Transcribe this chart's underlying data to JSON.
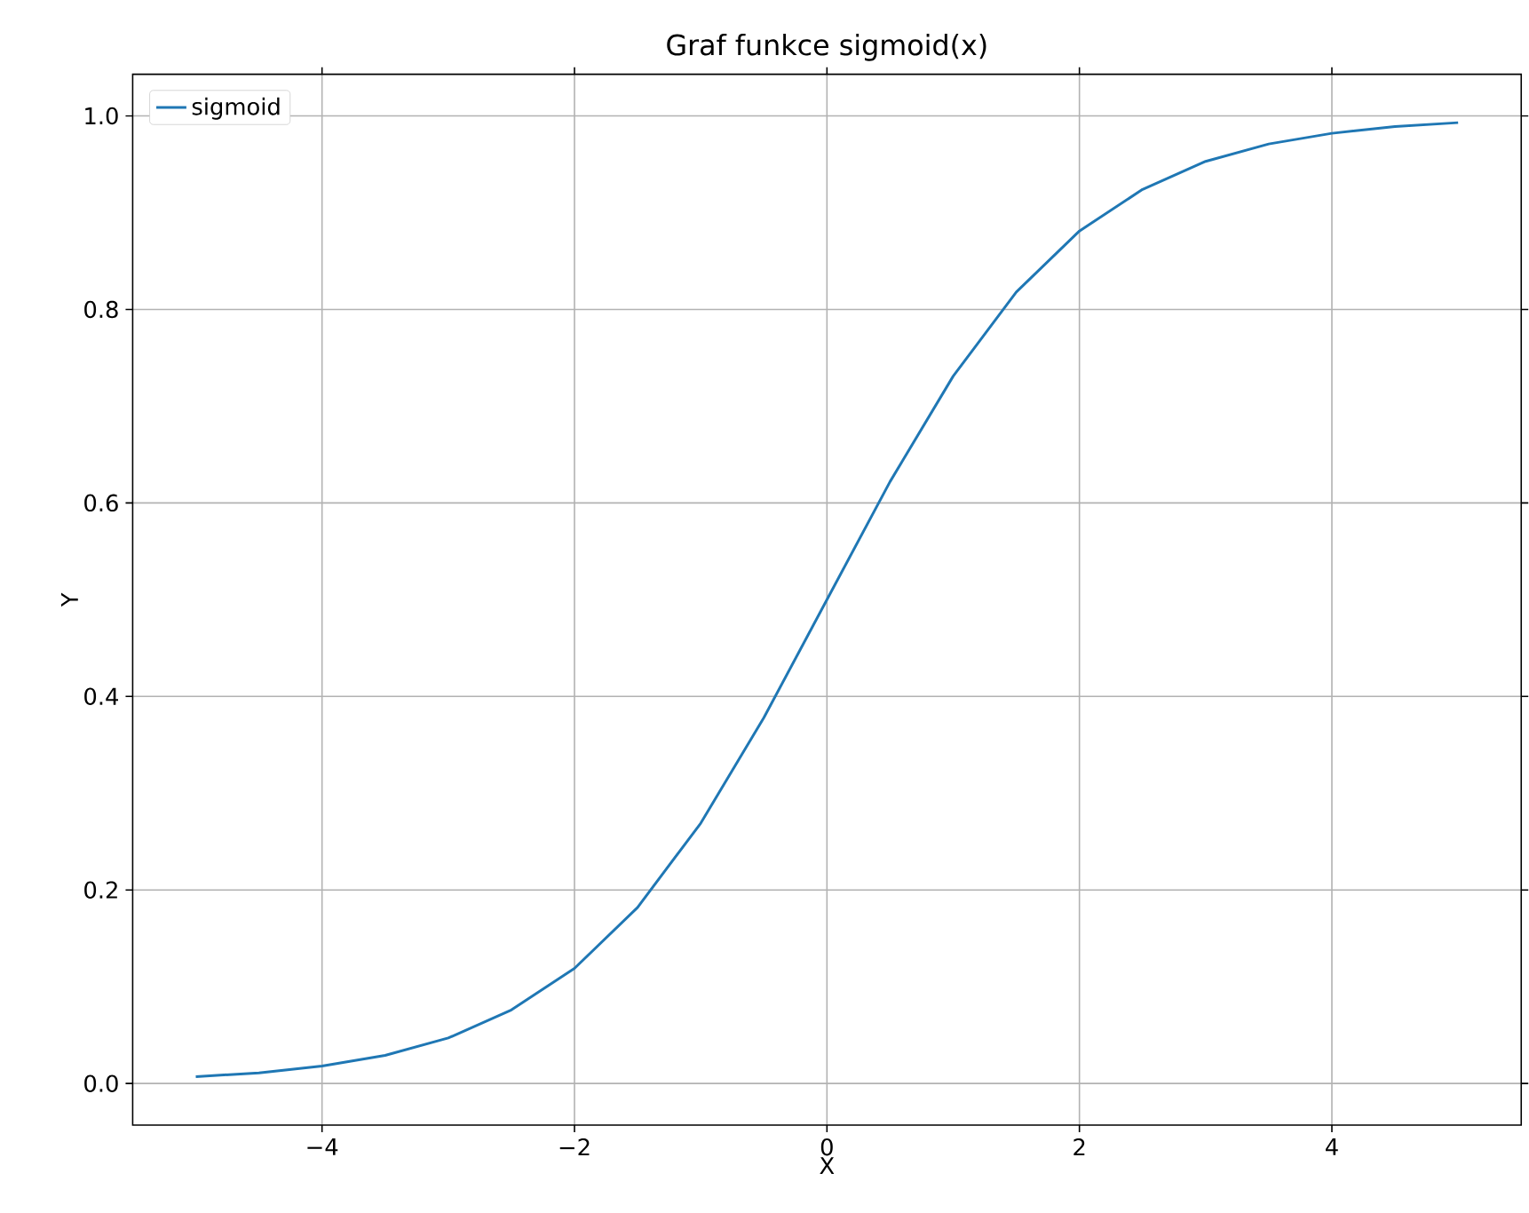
{
  "chart_data": {
    "type": "line",
    "title": "Graf funkce sigmoid(x)",
    "xlabel": "X",
    "ylabel": "Y",
    "x": [
      -5,
      -4.5,
      -4,
      -3.5,
      -3,
      -2.5,
      -2,
      -1.5,
      -1,
      -0.5,
      0,
      0.5,
      1,
      1.5,
      2,
      2.5,
      3,
      3.5,
      4,
      4.5,
      5
    ],
    "series": [
      {
        "name": "sigmoid",
        "color": "#1f77b4",
        "values": [
          0.007,
          0.011,
          0.018,
          0.029,
          0.047,
          0.076,
          0.119,
          0.182,
          0.269,
          0.378,
          0.5,
          0.622,
          0.731,
          0.818,
          0.881,
          0.924,
          0.953,
          0.971,
          0.982,
          0.989,
          0.993
        ]
      }
    ],
    "xlim": [
      -5.5,
      5.5
    ],
    "ylim": [
      -0.043,
      1.043
    ],
    "xticks": [
      {
        "value": -4,
        "label": "−4"
      },
      {
        "value": -2,
        "label": "−2"
      },
      0,
      2,
      4
    ],
    "yticks": [
      {
        "value": 0,
        "label": "0.0"
      },
      {
        "value": 0.2,
        "label": "0.2"
      },
      {
        "value": 0.4,
        "label": "0.4"
      },
      {
        "value": 0.6,
        "label": "0.6"
      },
      {
        "value": 0.8,
        "label": "0.8"
      },
      {
        "value": 1,
        "label": "1.0"
      }
    ],
    "grid": true,
    "legend": "top left"
  }
}
